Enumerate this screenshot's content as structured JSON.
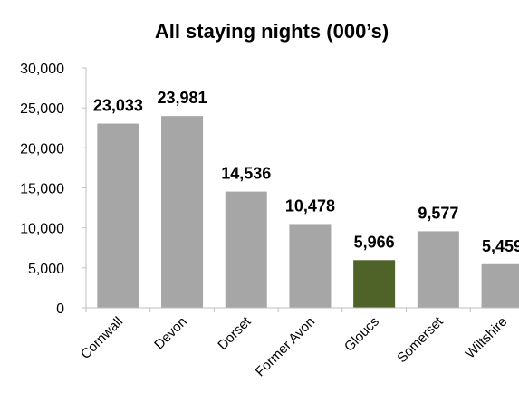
{
  "chart_data": {
    "type": "bar",
    "title": "All staying nights (000’s)",
    "xlabel": "",
    "ylabel": "",
    "categories": [
      "Cornwall",
      "Devon",
      "Dorset",
      "Former Avon",
      "Gloucs",
      "Somerset",
      "Wiltshire"
    ],
    "values": [
      23033,
      23981,
      14536,
      10478,
      5966,
      9577,
      5459
    ],
    "value_labels": [
      "23,033",
      "23,981",
      "14,536",
      "10,478",
      "5,966",
      "9,577",
      "5,459"
    ],
    "ylim": [
      0,
      30000
    ],
    "yticks": [
      0,
      5000,
      10000,
      15000,
      20000,
      25000,
      30000
    ],
    "ytick_labels": [
      "0",
      "5,000",
      "10,000",
      "15,000",
      "20,000",
      "25,000",
      "30,000"
    ],
    "grid": false,
    "legend": "none",
    "colors": {
      "default_bar": "#a6a6a6",
      "highlight_bar": "#4f6228",
      "axis": "#bfbfbf"
    },
    "highlight_category": "Gloucs"
  }
}
